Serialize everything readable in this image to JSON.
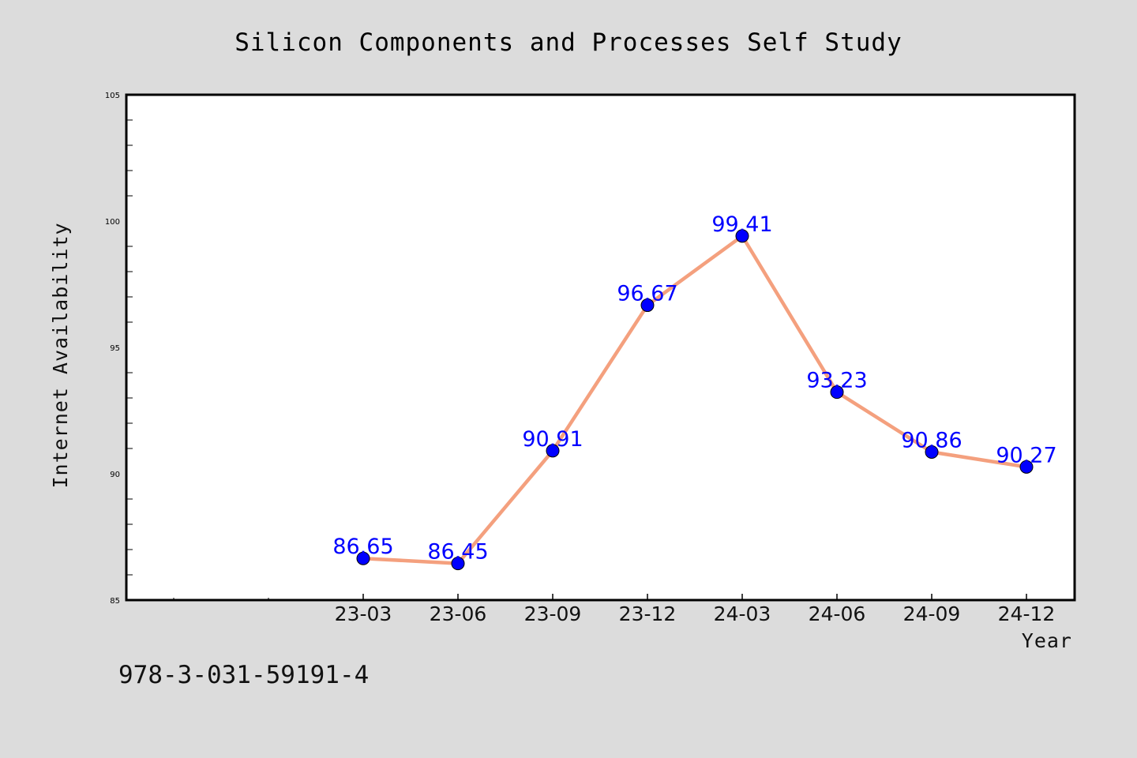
{
  "chart_data": {
    "type": "line",
    "title": "Silicon Components and Processes Self Study",
    "xlabel": "Year",
    "ylabel": "Internet Availability",
    "categories": [
      "23-03",
      "23-06",
      "23-09",
      "23-12",
      "24-03",
      "24-06",
      "24-09",
      "24-12"
    ],
    "series": [
      {
        "values": [
          86.65,
          86.45,
          90.91,
          96.67,
          99.41,
          93.23,
          90.86,
          90.27
        ],
        "data_labels": [
          "86.65",
          "86.45",
          "90.91",
          "96.67",
          "99.41",
          "93.23",
          "90.86",
          "90.27"
        ]
      }
    ],
    "ylim": [
      85,
      105
    ],
    "yticks": [
      85,
      90,
      95,
      100,
      105
    ],
    "ytick_labels": [
      "85",
      "90",
      "95",
      "100",
      "105"
    ],
    "grid": false,
    "line_color": "#f4a07e",
    "marker_color": "#0000ff",
    "label_color": "#0000ff",
    "background_color": "#dcdcdc",
    "plot_background_color": "#ffffff"
  },
  "footer": {
    "text": "978-3-031-59191-4"
  }
}
